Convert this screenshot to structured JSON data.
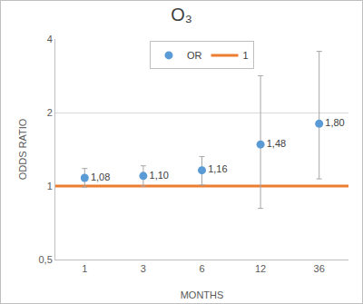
{
  "chart_data": {
    "type": "scatter",
    "title": "O₃",
    "x_label": "MONTHS",
    "y_label": "ODDS RATIO",
    "categories": [
      "1",
      "3",
      "6",
      "12",
      "36"
    ],
    "series": [
      {
        "name": "OR",
        "color": "#5b9bd5",
        "marker": "circle",
        "values": [
          1.08,
          1.1,
          1.16,
          1.48,
          1.8
        ],
        "value_labels": [
          "1,08",
          "1,10",
          "1,16",
          "1,48",
          "1,80"
        ],
        "ci_lower": [
          0.99,
          1.0,
          1.01,
          0.81,
          1.07
        ],
        "ci_upper": [
          1.18,
          1.21,
          1.32,
          2.83,
          3.56
        ]
      }
    ],
    "reference_line": {
      "name": "1",
      "value": 1,
      "color": "#ed7d31"
    },
    "data_labels": true,
    "log": "y",
    "ylim": [
      0.5,
      4
    ],
    "yticks": [
      {
        "value": 0.5,
        "label": "0,5"
      },
      1,
      2,
      4
    ],
    "grid": true,
    "legend": "top"
  }
}
